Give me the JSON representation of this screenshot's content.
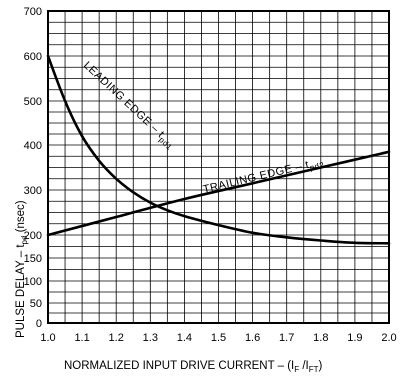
{
  "chart_data": {
    "type": "line",
    "xlabel": {
      "main": "NORMALIZED INPUT DRIVE CURRENT – (I",
      "sub1": "F",
      "mid": " /I",
      "sub2": "FT",
      "end": ")"
    },
    "ylabel": {
      "main": "PULSE DELAY – t",
      "sub": "pd",
      "end": " (nsec)"
    },
    "xlim": [
      1.0,
      2.0
    ],
    "ylim": [
      0,
      700
    ],
    "x_ticks": [
      "1.0",
      "1.1",
      "1.2",
      "1.3",
      "1.4",
      "1.5",
      "1.6",
      "1.7",
      "1.8",
      "1.9",
      "2.0"
    ],
    "y_ticks": [
      "0",
      "50",
      "100",
      "150",
      "200",
      "300",
      "400",
      "500",
      "600",
      "700"
    ],
    "grid": true,
    "series": [
      {
        "name": "LEADING EDGE – t",
        "sub": "pd1",
        "x": [
          1.0,
          1.05,
          1.1,
          1.15,
          1.2,
          1.25,
          1.3,
          1.35,
          1.4,
          1.5,
          1.6,
          1.7,
          1.8,
          1.9,
          2.0
        ],
        "y": [
          600,
          500,
          420,
          365,
          325,
          295,
          272,
          255,
          242,
          222,
          205,
          195,
          188,
          183,
          182
        ]
      },
      {
        "name": "TRAILING EDGE – t",
        "sub": "pd2",
        "x": [
          1.0,
          1.2,
          1.4,
          1.6,
          1.8,
          2.0
        ],
        "y": [
          200,
          240,
          280,
          315,
          350,
          385
        ]
      }
    ]
  }
}
